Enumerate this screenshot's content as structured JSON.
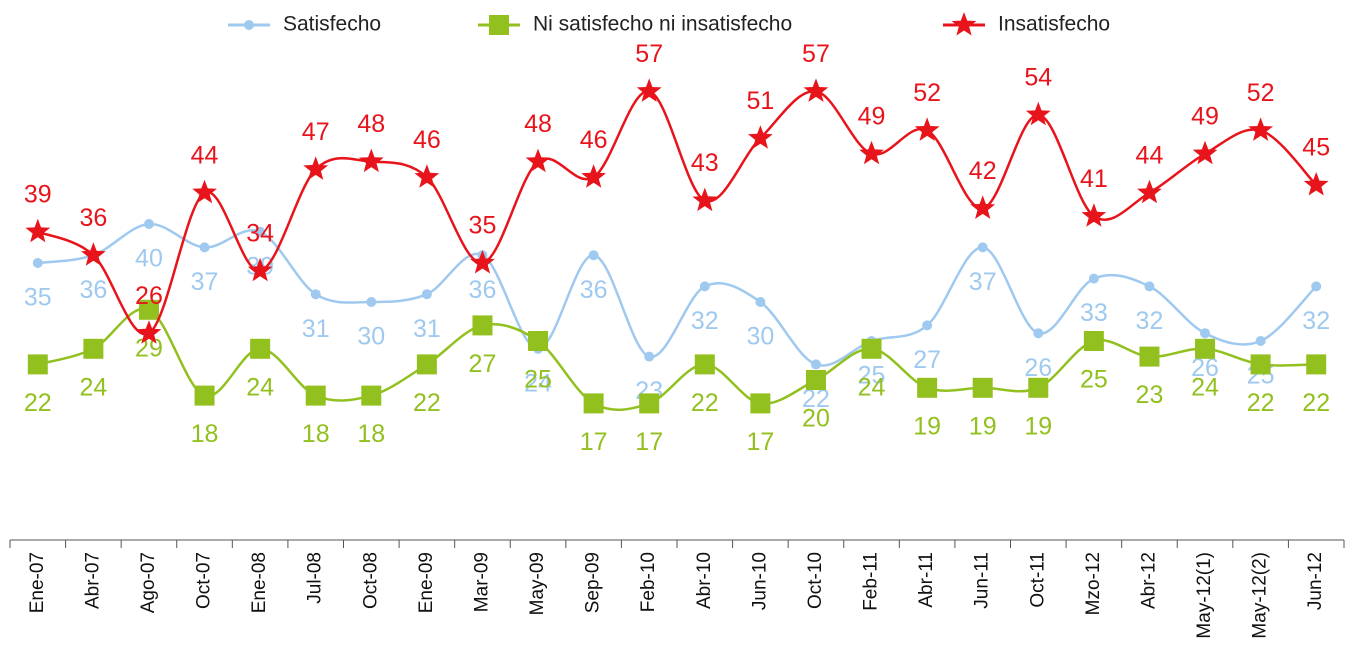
{
  "chart_data": {
    "type": "line",
    "categories": [
      "Ene-07",
      "Abr-07",
      "Ago-07",
      "Oct-07",
      "Ene-08",
      "Jul-08",
      "Oct-08",
      "Ene-09",
      "Mar-09",
      "May-09",
      "Sep-09",
      "Feb-10",
      "Abr-10",
      "Jun-10",
      "Oct-10",
      "Feb-11",
      "Abr-11",
      "Jun-11",
      "Oct-11",
      "Mzo-12",
      "Abr-12",
      "May-12(1)",
      "May-12(2)",
      "Jun-12"
    ],
    "series": [
      {
        "name": "Satisfecho",
        "color": "#9fc9ef",
        "marker": "circle",
        "values": [
          35,
          36,
          40,
          37,
          39,
          31,
          30,
          31,
          36,
          24,
          36,
          23,
          32,
          30,
          22,
          25,
          27,
          37,
          26,
          33,
          32,
          26,
          25,
          32
        ]
      },
      {
        "name": "Ni satisfecho ni insatisfecho",
        "color": "#92c01f",
        "marker": "square",
        "values": [
          22,
          24,
          29,
          18,
          24,
          18,
          18,
          22,
          27,
          25,
          17,
          17,
          22,
          17,
          20,
          24,
          19,
          19,
          19,
          25,
          23,
          24,
          22,
          22
        ]
      },
      {
        "name": "Insatisfecho",
        "color": "#e8141b",
        "marker": "star",
        "values": [
          39,
          36,
          26,
          44,
          34,
          47,
          48,
          46,
          35,
          48,
          46,
          57,
          43,
          51,
          57,
          49,
          52,
          42,
          54,
          41,
          44,
          49,
          52,
          45
        ]
      }
    ],
    "ylim": [
      0,
      68
    ],
    "legend": "top"
  }
}
